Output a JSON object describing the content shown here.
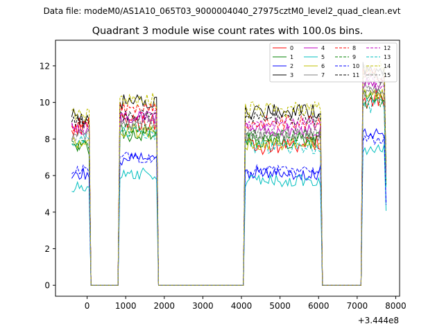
{
  "header": {
    "data_file": "Data file: modeM0/AS1A10_065T03_9000004040_27975cztM0_level2_quad_clean.evt"
  },
  "chart_data": {
    "type": "line",
    "title": "Quadrant 3 module wise count rates with 100.0s bins.",
    "xlabel": "",
    "ylabel": "",
    "x_offset_label": "+3.444e8",
    "xlim": [
      -820,
      8100
    ],
    "ylim": [
      -0.6,
      13.4
    ],
    "x_ticks": [
      0,
      1000,
      2000,
      3000,
      4000,
      5000,
      6000,
      7000,
      8000
    ],
    "x_tick_labels": [
      "0",
      "1000",
      "2000",
      "3000",
      "4000",
      "5000",
      "6000",
      "7000",
      "8000"
    ],
    "y_ticks": [
      0,
      2,
      4,
      6,
      8,
      10,
      12
    ],
    "y_tick_labels": [
      "0",
      "2",
      "4",
      "6",
      "8",
      "10",
      "12"
    ],
    "grid": false,
    "legend_position": "top-right",
    "segments": [
      {
        "start": -400,
        "end": 100,
        "step": 50
      },
      {
        "start": 100,
        "end": 850,
        "step": 50
      },
      {
        "start": 850,
        "end": 1850,
        "step": 50
      },
      {
        "start": 1850,
        "end": 4100,
        "step": 50
      },
      {
        "start": 4100,
        "end": 6100,
        "step": 50
      },
      {
        "start": 6100,
        "end": 7150,
        "step": 50
      },
      {
        "start": 7150,
        "end": 7750,
        "step": 50
      }
    ],
    "series": [
      {
        "name": "0",
        "color": "#ff0000",
        "dash": false,
        "levels": [
          8.6,
          0,
          8.9,
          0,
          7.7,
          0,
          10.2
        ],
        "amp": 0.55
      },
      {
        "name": "1",
        "color": "#008000",
        "dash": false,
        "levels": [
          7.5,
          0,
          8.3,
          0,
          7.9,
          0,
          10.4
        ],
        "amp": 0.45
      },
      {
        "name": "2",
        "color": "#0000ff",
        "dash": false,
        "levels": [
          6.1,
          0,
          6.9,
          0,
          6.1,
          0,
          8.2
        ],
        "amp": 0.35
      },
      {
        "name": "3",
        "color": "#000000",
        "dash": false,
        "levels": [
          9.2,
          0,
          10.0,
          0,
          9.5,
          0,
          11.8
        ],
        "amp": 0.45
      },
      {
        "name": "4",
        "color": "#bf00bf",
        "dash": false,
        "levels": [
          8.5,
          0,
          9.2,
          0,
          8.5,
          0,
          11.0
        ],
        "amp": 0.4
      },
      {
        "name": "5",
        "color": "#00bfbf",
        "dash": false,
        "levels": [
          5.3,
          0,
          6.1,
          0,
          5.7,
          0,
          7.4
        ],
        "amp": 0.35
      },
      {
        "name": "6",
        "color": "#bfbf00",
        "dash": false,
        "levels": [
          7.8,
          0,
          8.4,
          0,
          7.8,
          0,
          10.4
        ],
        "amp": 0.4
      },
      {
        "name": "7",
        "color": "#808080",
        "dash": false,
        "levels": [
          8.3,
          0,
          8.9,
          0,
          8.2,
          0,
          10.6
        ],
        "amp": 0.35
      },
      {
        "name": "8",
        "color": "#ff0000",
        "dash": true,
        "levels": [
          8.8,
          0,
          9.6,
          0,
          8.9,
          0,
          11.5
        ],
        "amp": 0.4
      },
      {
        "name": "9",
        "color": "#008000",
        "dash": true,
        "levels": [
          7.7,
          0,
          8.5,
          0,
          8.2,
          0,
          10.0
        ],
        "amp": 0.35
      },
      {
        "name": "10",
        "color": "#0000ff",
        "dash": true,
        "levels": [
          6.3,
          0,
          7.0,
          0,
          6.3,
          0,
          8.0
        ],
        "amp": 0.3
      },
      {
        "name": "11",
        "color": "#000000",
        "dash": true,
        "levels": [
          8.9,
          0,
          9.3,
          0,
          9.1,
          0,
          11.3
        ],
        "amp": 0.35
      },
      {
        "name": "12",
        "color": "#bf00bf",
        "dash": true,
        "levels": [
          8.6,
          0,
          9.3,
          0,
          8.8,
          0,
          11.1
        ],
        "amp": 0.35
      },
      {
        "name": "13",
        "color": "#00bfbf",
        "dash": true,
        "levels": [
          7.9,
          0,
          8.3,
          0,
          7.6,
          0,
          9.8
        ],
        "amp": 0.4
      },
      {
        "name": "14",
        "color": "#bfbf00",
        "dash": true,
        "levels": [
          9.4,
          0,
          10.1,
          0,
          9.6,
          0,
          11.9
        ],
        "amp": 0.45
      },
      {
        "name": "15",
        "color": "#808080",
        "dash": true,
        "levels": [
          8.2,
          0,
          8.8,
          0,
          8.3,
          0,
          10.8
        ],
        "amp": 0.35
      }
    ]
  }
}
